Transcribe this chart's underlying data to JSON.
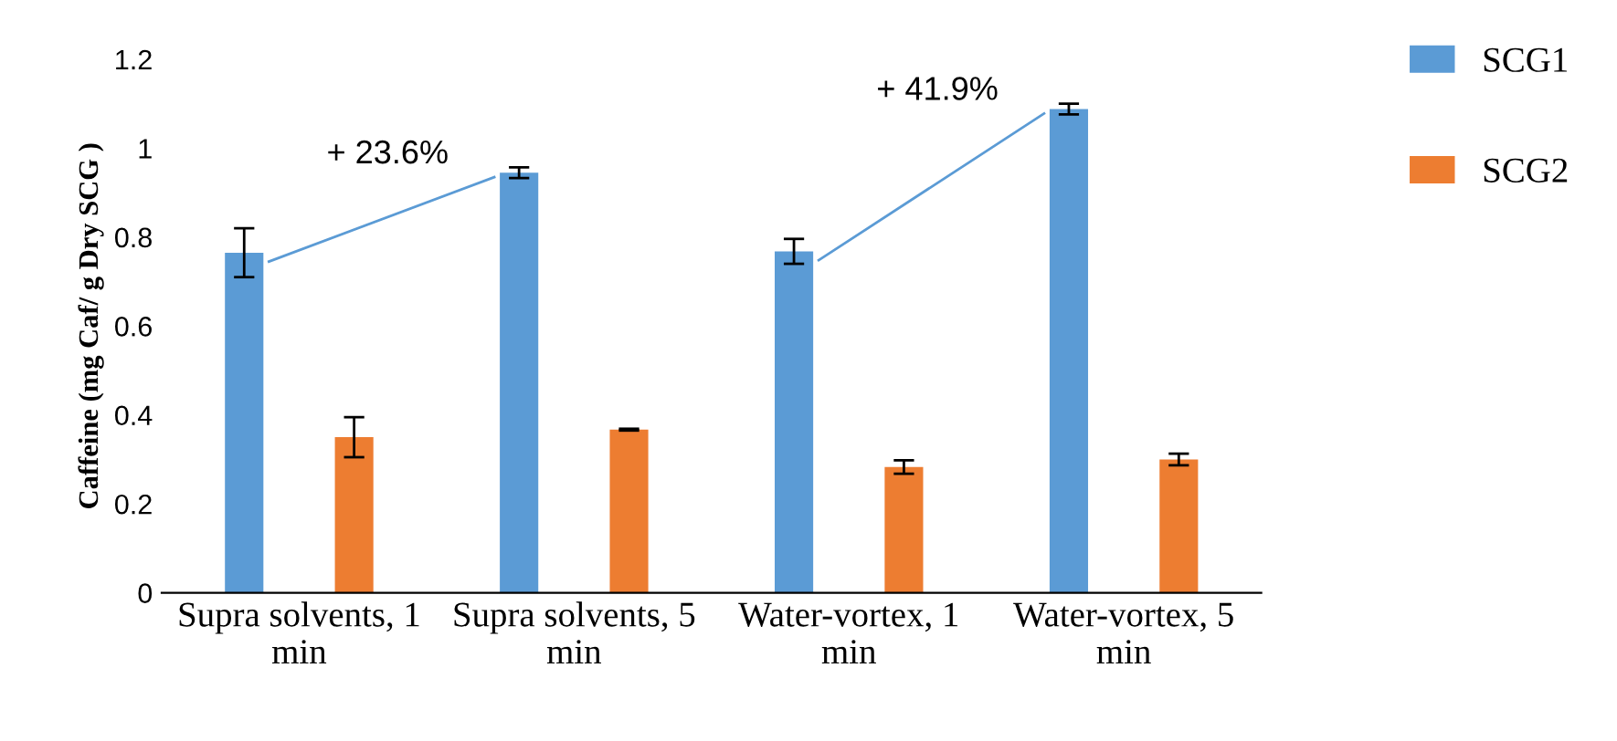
{
  "chart_data": {
    "type": "bar",
    "ylabel": "Caffeine (mg Caf/ g Dry SCG )",
    "categories": [
      "Supra solvents, 1 min",
      "Supra solvents, 5 min",
      "Water-vortex, 1 min",
      "Water-vortex, 5 min"
    ],
    "series": [
      {
        "name": "SCG1",
        "color": "#5b9bd5",
        "values": [
          0.765,
          0.945,
          0.768,
          1.088
        ],
        "errors": [
          0.055,
          0.012,
          0.028,
          0.012
        ]
      },
      {
        "name": "SCG2",
        "color": "#ed7d31",
        "values": [
          0.35,
          0.367,
          0.283,
          0.3
        ],
        "errors": [
          0.045,
          0.002,
          0.015,
          0.013
        ]
      }
    ],
    "annotations": [
      "+ 23.6%",
      "+ 41.9%"
    ],
    "ylim": [
      0,
      1.2
    ],
    "yticks": [
      0,
      0.2,
      0.4,
      0.6,
      0.8,
      1,
      1.2
    ],
    "legend": "top right",
    "grid": false
  }
}
